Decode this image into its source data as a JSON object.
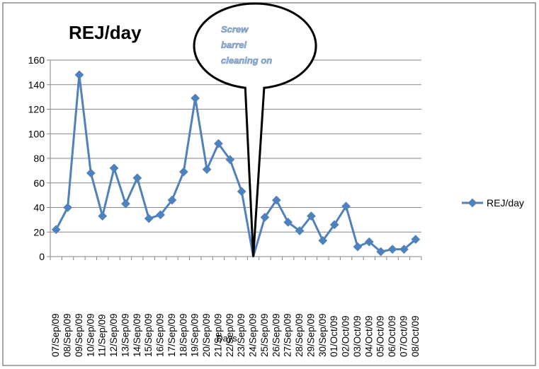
{
  "chart_data": {
    "type": "line",
    "title": "REJ/day",
    "xlabel": "Days",
    "ylabel": "",
    "ylim": [
      0,
      160
    ],
    "yticks": [
      0,
      20,
      40,
      60,
      80,
      100,
      120,
      140,
      160
    ],
    "grid": "horizontal",
    "legend_position": "right",
    "categories": [
      "07/Sep/09",
      "08/Sep/09",
      "09/Sep/09",
      "10/Sep/09",
      "11/Sep/09",
      "12/Sep/09",
      "13/Sep/09",
      "14/Sep/09",
      "15/Sep/09",
      "16/Sep/09",
      "17/Sep/09",
      "18/Sep/09",
      "19/Sep/09",
      "20/Sep/09",
      "21/Sep/09",
      "22/Sep/09",
      "23/Sep/09",
      "24/Sep/09",
      "25/Sep/09",
      "26/Sep/09",
      "27/Sep/09",
      "28/Sep/09",
      "29/Sep/09",
      "30/Sep/09",
      "01/Oct/09",
      "02/Oct/09",
      "03/Oct/09",
      "04/Oct/09",
      "05/Oct/09",
      "06/Oct/09",
      "07/Oct/09",
      "08/Oct/09"
    ],
    "series": [
      {
        "name": "REJ/day",
        "color": "#4f81bd",
        "values": [
          22,
          40,
          148,
          68,
          33,
          72,
          43,
          64,
          31,
          34,
          46,
          69,
          129,
          71,
          92,
          79,
          53,
          null,
          32,
          46,
          28,
          21,
          33,
          13,
          26,
          41,
          8,
          12,
          4,
          6,
          6,
          14
        ]
      }
    ],
    "annotation": {
      "text_lines": [
        "Screw",
        "barrel",
        "cleaning on"
      ],
      "pointer_category": "24/Sep/09"
    }
  }
}
